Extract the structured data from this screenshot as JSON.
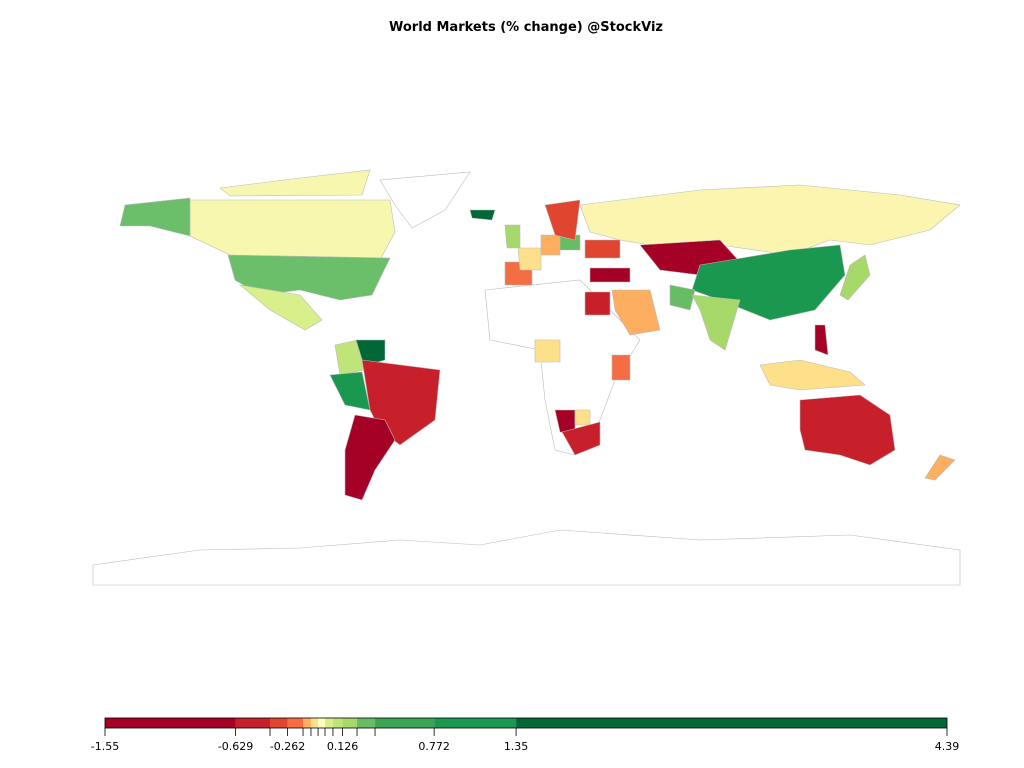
{
  "title": "World Markets (% change) @StockViz",
  "legend": {
    "lim": [
      -1.55,
      4.39
    ],
    "breaks": [
      -1.55,
      -0.629,
      -0.386,
      -0.262,
      -0.153,
      -0.097,
      -0.047,
      0.002,
      0.058,
      0.126,
      0.228,
      0.355,
      0.772,
      1.35,
      4.39
    ],
    "colors": [
      "#a50026",
      "#c8202a",
      "#e0452f",
      "#f46d43",
      "#fdae61",
      "#fee08b",
      "#ffffbf",
      "#d9ef8b",
      "#bfe47a",
      "#a6d96a",
      "#66bd63",
      "#3aa655",
      "#1a9850",
      "#006837"
    ],
    "ticks": [
      -1.55,
      -0.629,
      -0.262,
      0.126,
      0.772,
      1.35,
      4.39
    ]
  }
}
